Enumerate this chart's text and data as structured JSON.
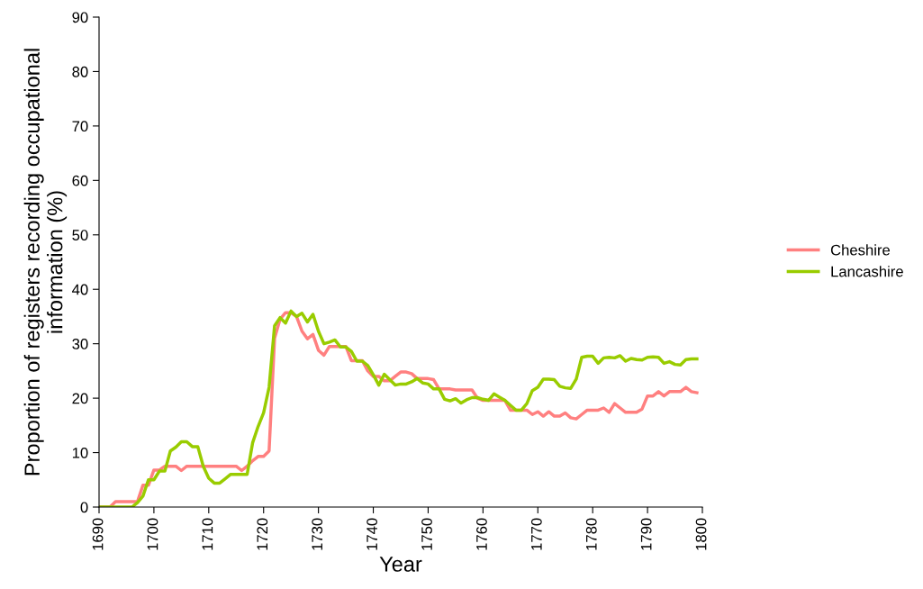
{
  "chart_data": {
    "type": "line",
    "xlabel": "Year",
    "ylabel": "Proportion of registers recording occupational information (%)",
    "x": [
      1690,
      1691,
      1692,
      1693,
      1694,
      1695,
      1696,
      1697,
      1698,
      1699,
      1700,
      1701,
      1702,
      1703,
      1704,
      1705,
      1706,
      1707,
      1708,
      1709,
      1710,
      1711,
      1712,
      1713,
      1714,
      1715,
      1716,
      1717,
      1718,
      1719,
      1720,
      1721,
      1722,
      1723,
      1724,
      1725,
      1726,
      1727,
      1728,
      1729,
      1730,
      1731,
      1732,
      1733,
      1734,
      1735,
      1736,
      1737,
      1738,
      1739,
      1740,
      1741,
      1742,
      1743,
      1744,
      1745,
      1746,
      1747,
      1748,
      1749,
      1750,
      1751,
      1752,
      1753,
      1754,
      1755,
      1756,
      1757,
      1758,
      1759,
      1760,
      1761,
      1762,
      1763,
      1764,
      1765,
      1766,
      1767,
      1768,
      1769,
      1770,
      1771,
      1772,
      1773,
      1774,
      1775,
      1776,
      1777,
      1778,
      1779,
      1780,
      1781,
      1782,
      1783,
      1784,
      1785,
      1786,
      1787,
      1788,
      1789,
      1790,
      1791,
      1792,
      1793,
      1794,
      1795,
      1796,
      1797,
      1798,
      1799
    ],
    "series": [
      {
        "name": "Cheshire",
        "color": "#ff8080",
        "values": [
          0,
          0,
          0,
          1,
          1,
          1,
          1,
          1,
          4,
          4,
          6.8,
          6.8,
          7.5,
          7.5,
          7.5,
          6.7,
          7.5,
          7.5,
          7.5,
          7.5,
          7.5,
          7.5,
          7.5,
          7.5,
          7.5,
          7.5,
          6.7,
          7.5,
          8.5,
          9.3,
          9.3,
          10.3,
          31,
          34.5,
          35.7,
          35.7,
          35,
          32.3,
          30.9,
          31.7,
          28.8,
          27.9,
          29.5,
          29.5,
          29.5,
          29.5,
          26.9,
          26.9,
          26.9,
          25,
          24,
          24,
          23.2,
          23.2,
          24,
          24.8,
          24.8,
          24.5,
          23.6,
          23.6,
          23.6,
          23.4,
          21.7,
          21.7,
          21.7,
          21.5,
          21.5,
          21.5,
          21.5,
          20,
          19.6,
          19.6,
          19.6,
          19.6,
          19.6,
          17.8,
          17.8,
          17.8,
          17.8,
          17,
          17.5,
          16.7,
          17.5,
          16.7,
          16.7,
          17.3,
          16.4,
          16.2,
          17,
          17.8,
          17.8,
          17.8,
          18.2,
          17.4,
          19,
          18.2,
          17.4,
          17.4,
          17.4,
          18,
          20.4,
          20.4,
          21.2,
          20.4,
          21.2,
          21.2,
          21.2,
          22,
          21.2,
          21
        ]
      },
      {
        "name": "Lancashire",
        "color": "#99cc00",
        "values": [
          0,
          0,
          0,
          0,
          0,
          0,
          0,
          0.8,
          2,
          5,
          5,
          6.6,
          6.6,
          10.3,
          11,
          12,
          12,
          11.1,
          11.1,
          7.5,
          5.3,
          4.4,
          4.4,
          5.2,
          6,
          6,
          6,
          6,
          11.8,
          14.8,
          17.3,
          22,
          33.3,
          34.8,
          33.8,
          36,
          35,
          35.6,
          34,
          35.4,
          32.3,
          30,
          30.3,
          30.7,
          29.4,
          29.4,
          28.6,
          26.8,
          26.8,
          26,
          24.3,
          22.4,
          24.4,
          23.4,
          22.4,
          22.6,
          22.6,
          23,
          23.6,
          22.8,
          22.6,
          21.7,
          21.7,
          19.8,
          19.5,
          19.9,
          19.1,
          19.7,
          20.1,
          20.1,
          19.8,
          19.6,
          20.8,
          20.2,
          19.6,
          18.7,
          17.8,
          17.8,
          19,
          21.4,
          22,
          23.5,
          23.5,
          23.4,
          22.2,
          21.9,
          21.8,
          23.5,
          27.5,
          27.7,
          27.7,
          26.4,
          27.4,
          27.5,
          27.4,
          27.8,
          26.8,
          27.3,
          27.1,
          27,
          27.5,
          27.6,
          27.5,
          26.4,
          26.7,
          26.2,
          26.1,
          27.1,
          27.2,
          27.2
        ]
      }
    ],
    "xlim": [
      1690,
      1800
    ],
    "xticks": [
      1690,
      1700,
      1710,
      1720,
      1730,
      1740,
      1750,
      1760,
      1770,
      1780,
      1790,
      1800
    ],
    "ylim": [
      0,
      90
    ],
    "yticks": [
      0,
      10,
      20,
      30,
      40,
      50,
      60,
      70,
      80,
      90
    ],
    "grid": false,
    "legend": "right",
    "marker": "none",
    "line_style": "solid"
  }
}
